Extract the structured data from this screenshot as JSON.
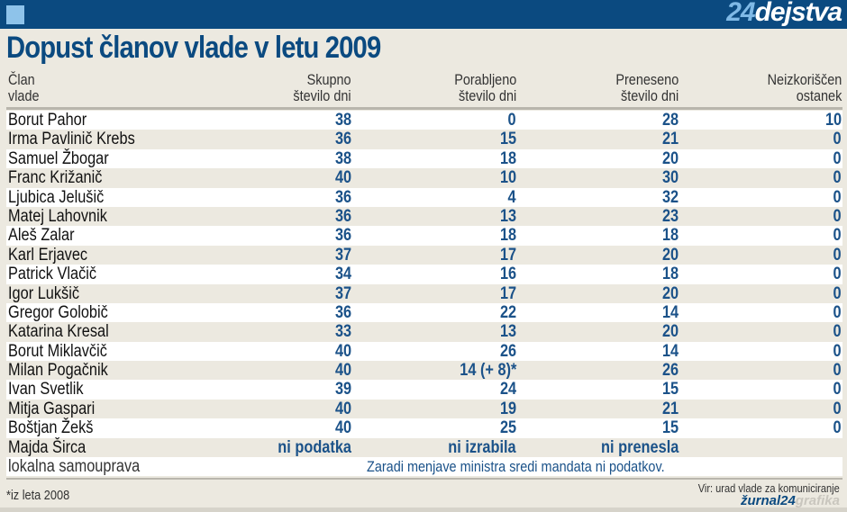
{
  "brand": {
    "prefix": "24",
    "name": "dejstva"
  },
  "title": "Dopust članov vlade v letu 2009",
  "columns": [
    {
      "line1": "Član",
      "line2": "vlade"
    },
    {
      "line1": "Skupno",
      "line2": "število dni"
    },
    {
      "line1": "Porabljeno",
      "line2": "število dni"
    },
    {
      "line1": "Preneseno",
      "line2": "število dni"
    },
    {
      "line1": "Neizkoriščen",
      "line2": "ostanek"
    }
  ],
  "rows": [
    [
      "Borut Pahor",
      "38",
      "0",
      "28",
      "10"
    ],
    [
      "Irma Pavlinič Krebs",
      "36",
      "15",
      "21",
      "0"
    ],
    [
      "Samuel Žbogar",
      "38",
      "18",
      "20",
      "0"
    ],
    [
      "Franc Križanič",
      "40",
      "10",
      "30",
      "0"
    ],
    [
      "Ljubica Jelušič",
      "36",
      "4",
      "32",
      "0"
    ],
    [
      "Matej Lahovnik",
      "36",
      "13",
      "23",
      "0"
    ],
    [
      "Aleš Zalar",
      "36",
      "18",
      "18",
      "0"
    ],
    [
      "Karl Erjavec",
      "37",
      "17",
      "20",
      "0"
    ],
    [
      "Patrick Vlačič",
      "34",
      "16",
      "18",
      "0"
    ],
    [
      "Igor Lukšič",
      "37",
      "17",
      "20",
      "0"
    ],
    [
      "Gregor Golobič",
      "36",
      "22",
      "14",
      "0"
    ],
    [
      "Katarina Kresal",
      "33",
      "13",
      "20",
      "0"
    ],
    [
      "Borut Miklavčič",
      "40",
      "26",
      "14",
      "0"
    ],
    [
      "Milan Pogačnik",
      "40",
      "14 (+ 8)*",
      "26",
      "0"
    ],
    [
      "Ivan Svetlik",
      "39",
      "24",
      "15",
      "0"
    ],
    [
      "Mitja Gaspari",
      "40",
      "19",
      "21",
      "0"
    ],
    [
      "Boštjan Žekš",
      "40",
      "25",
      "15",
      "0"
    ],
    [
      "Majda Širca",
      "ni podatka",
      "ni izrabila",
      "ni prenesla",
      ""
    ]
  ],
  "local": {
    "name": "lokalna samouprava",
    "note": "Zaradi menjave ministra sredi mandata ni podatkov."
  },
  "footnote": "*iz leta 2008",
  "source": "Vir: urad vlade za komuniciranje",
  "credit": {
    "a": "žurnal24",
    "b": "grafika"
  },
  "colors": {
    "header": "#0b4a80",
    "value": "#1b5289",
    "background": "#ece9e0"
  }
}
